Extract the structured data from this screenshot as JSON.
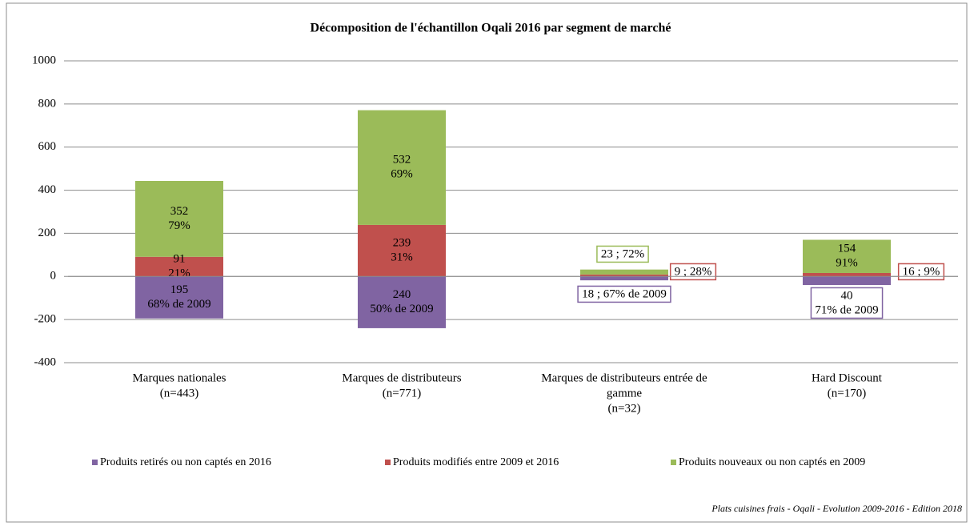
{
  "chart_data": {
    "type": "stacked-bar",
    "title": "Décomposition de l'échantillon Oqali 2016 par segment de marché",
    "footnote": "Plats cuisines frais - Oqali - Evolution 2009-2016 - Edition 2018",
    "categories": [
      [
        "Marques nationales",
        "(n=443)"
      ],
      [
        "Marques de distributeurs",
        "(n=771)"
      ],
      [
        "Marques de distributeurs entrée de",
        "gamme",
        "(n=32)"
      ],
      [
        "Hard Discount",
        "(n=170)"
      ]
    ],
    "series": [
      {
        "name": "Produits retirés ou non captés en 2016",
        "color": "#8064a2",
        "values": [
          -195,
          -240,
          -18,
          -40
        ],
        "value_labels": [
          [
            "195",
            "68% de 2009"
          ],
          [
            "240",
            "50% de 2009"
          ],
          [
            "18 ; 67% de 2009"
          ],
          [
            "40",
            "71% de 2009"
          ]
        ]
      },
      {
        "name": "Produits modifiés entre 2009 et 2016",
        "color": "#c0504d",
        "values": [
          91,
          239,
          9,
          16
        ],
        "value_labels": [
          [
            "91",
            "21%"
          ],
          [
            "239",
            "31%"
          ],
          [
            "9 ; 28%"
          ],
          [
            "16 ; 9%"
          ]
        ]
      },
      {
        "name": "Produits nouveaux ou non captés en 2009",
        "color": "#9bbb59",
        "values": [
          352,
          532,
          23,
          154
        ],
        "value_labels": [
          [
            "352",
            "79%"
          ],
          [
            "532",
            "69%"
          ],
          [
            "23 ; 72%"
          ],
          [
            "154",
            "91%"
          ]
        ]
      }
    ],
    "ylim": [
      -400,
      1000
    ],
    "yticks": [
      -400,
      -200,
      0,
      200,
      400,
      600,
      800,
      1000
    ],
    "grid": true,
    "legend": "bottom"
  }
}
